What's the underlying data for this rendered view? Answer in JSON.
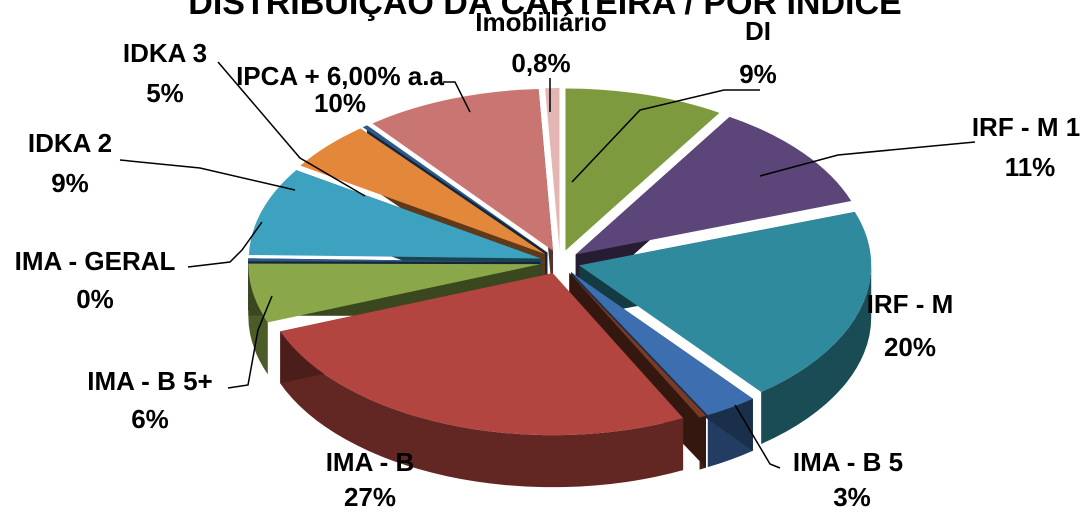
{
  "chart_data": {
    "type": "pie",
    "title": "DISTRIBUIÇÃO DA CARTEIRA / POR ÍNDICE",
    "slices": [
      {
        "label": "DI",
        "percent_label": "9%",
        "value": 9,
        "color": "#7e9a3f"
      },
      {
        "label": "IRF - M 1",
        "percent_label": "11%",
        "value": 11,
        "color": "#5c4679"
      },
      {
        "label": "IRF - M",
        "percent_label": "20%",
        "value": 20,
        "color": "#2f8a9d"
      },
      {
        "label": "IMA - B 5",
        "percent_label": "3%",
        "value": 3,
        "color": "#3d6fb0"
      },
      {
        "label": "",
        "percent_label": "",
        "value": 0.4,
        "color": "#7b3a25"
      },
      {
        "label": "IMA - B",
        "percent_label": "27%",
        "value": 27,
        "color": "#b34540"
      },
      {
        "label": "IMA - B 5+",
        "percent_label": "6%",
        "value": 6,
        "color": "#8aa84a"
      },
      {
        "label": "IMA - GERAL",
        "percent_label": "0%",
        "value": 0.3,
        "color": "#2e5a8a"
      },
      {
        "label": "IDKA 2",
        "percent_label": "9%",
        "value": 9,
        "color": "#3da2bf"
      },
      {
        "label": "IDKA 3",
        "percent_label": "5%",
        "value": 5,
        "color": "#e3873a"
      },
      {
        "label": "",
        "percent_label": "",
        "value": 0.3,
        "color": "#2e5a8a"
      },
      {
        "label": "IPCA + 6,00% a.a",
        "percent_label": "10%",
        "value": 10,
        "color": "#c97672"
      },
      {
        "label": "Imobiliário",
        "percent_label": "0,8%",
        "value": 0.8,
        "color": "#e3b5b3"
      }
    ]
  }
}
